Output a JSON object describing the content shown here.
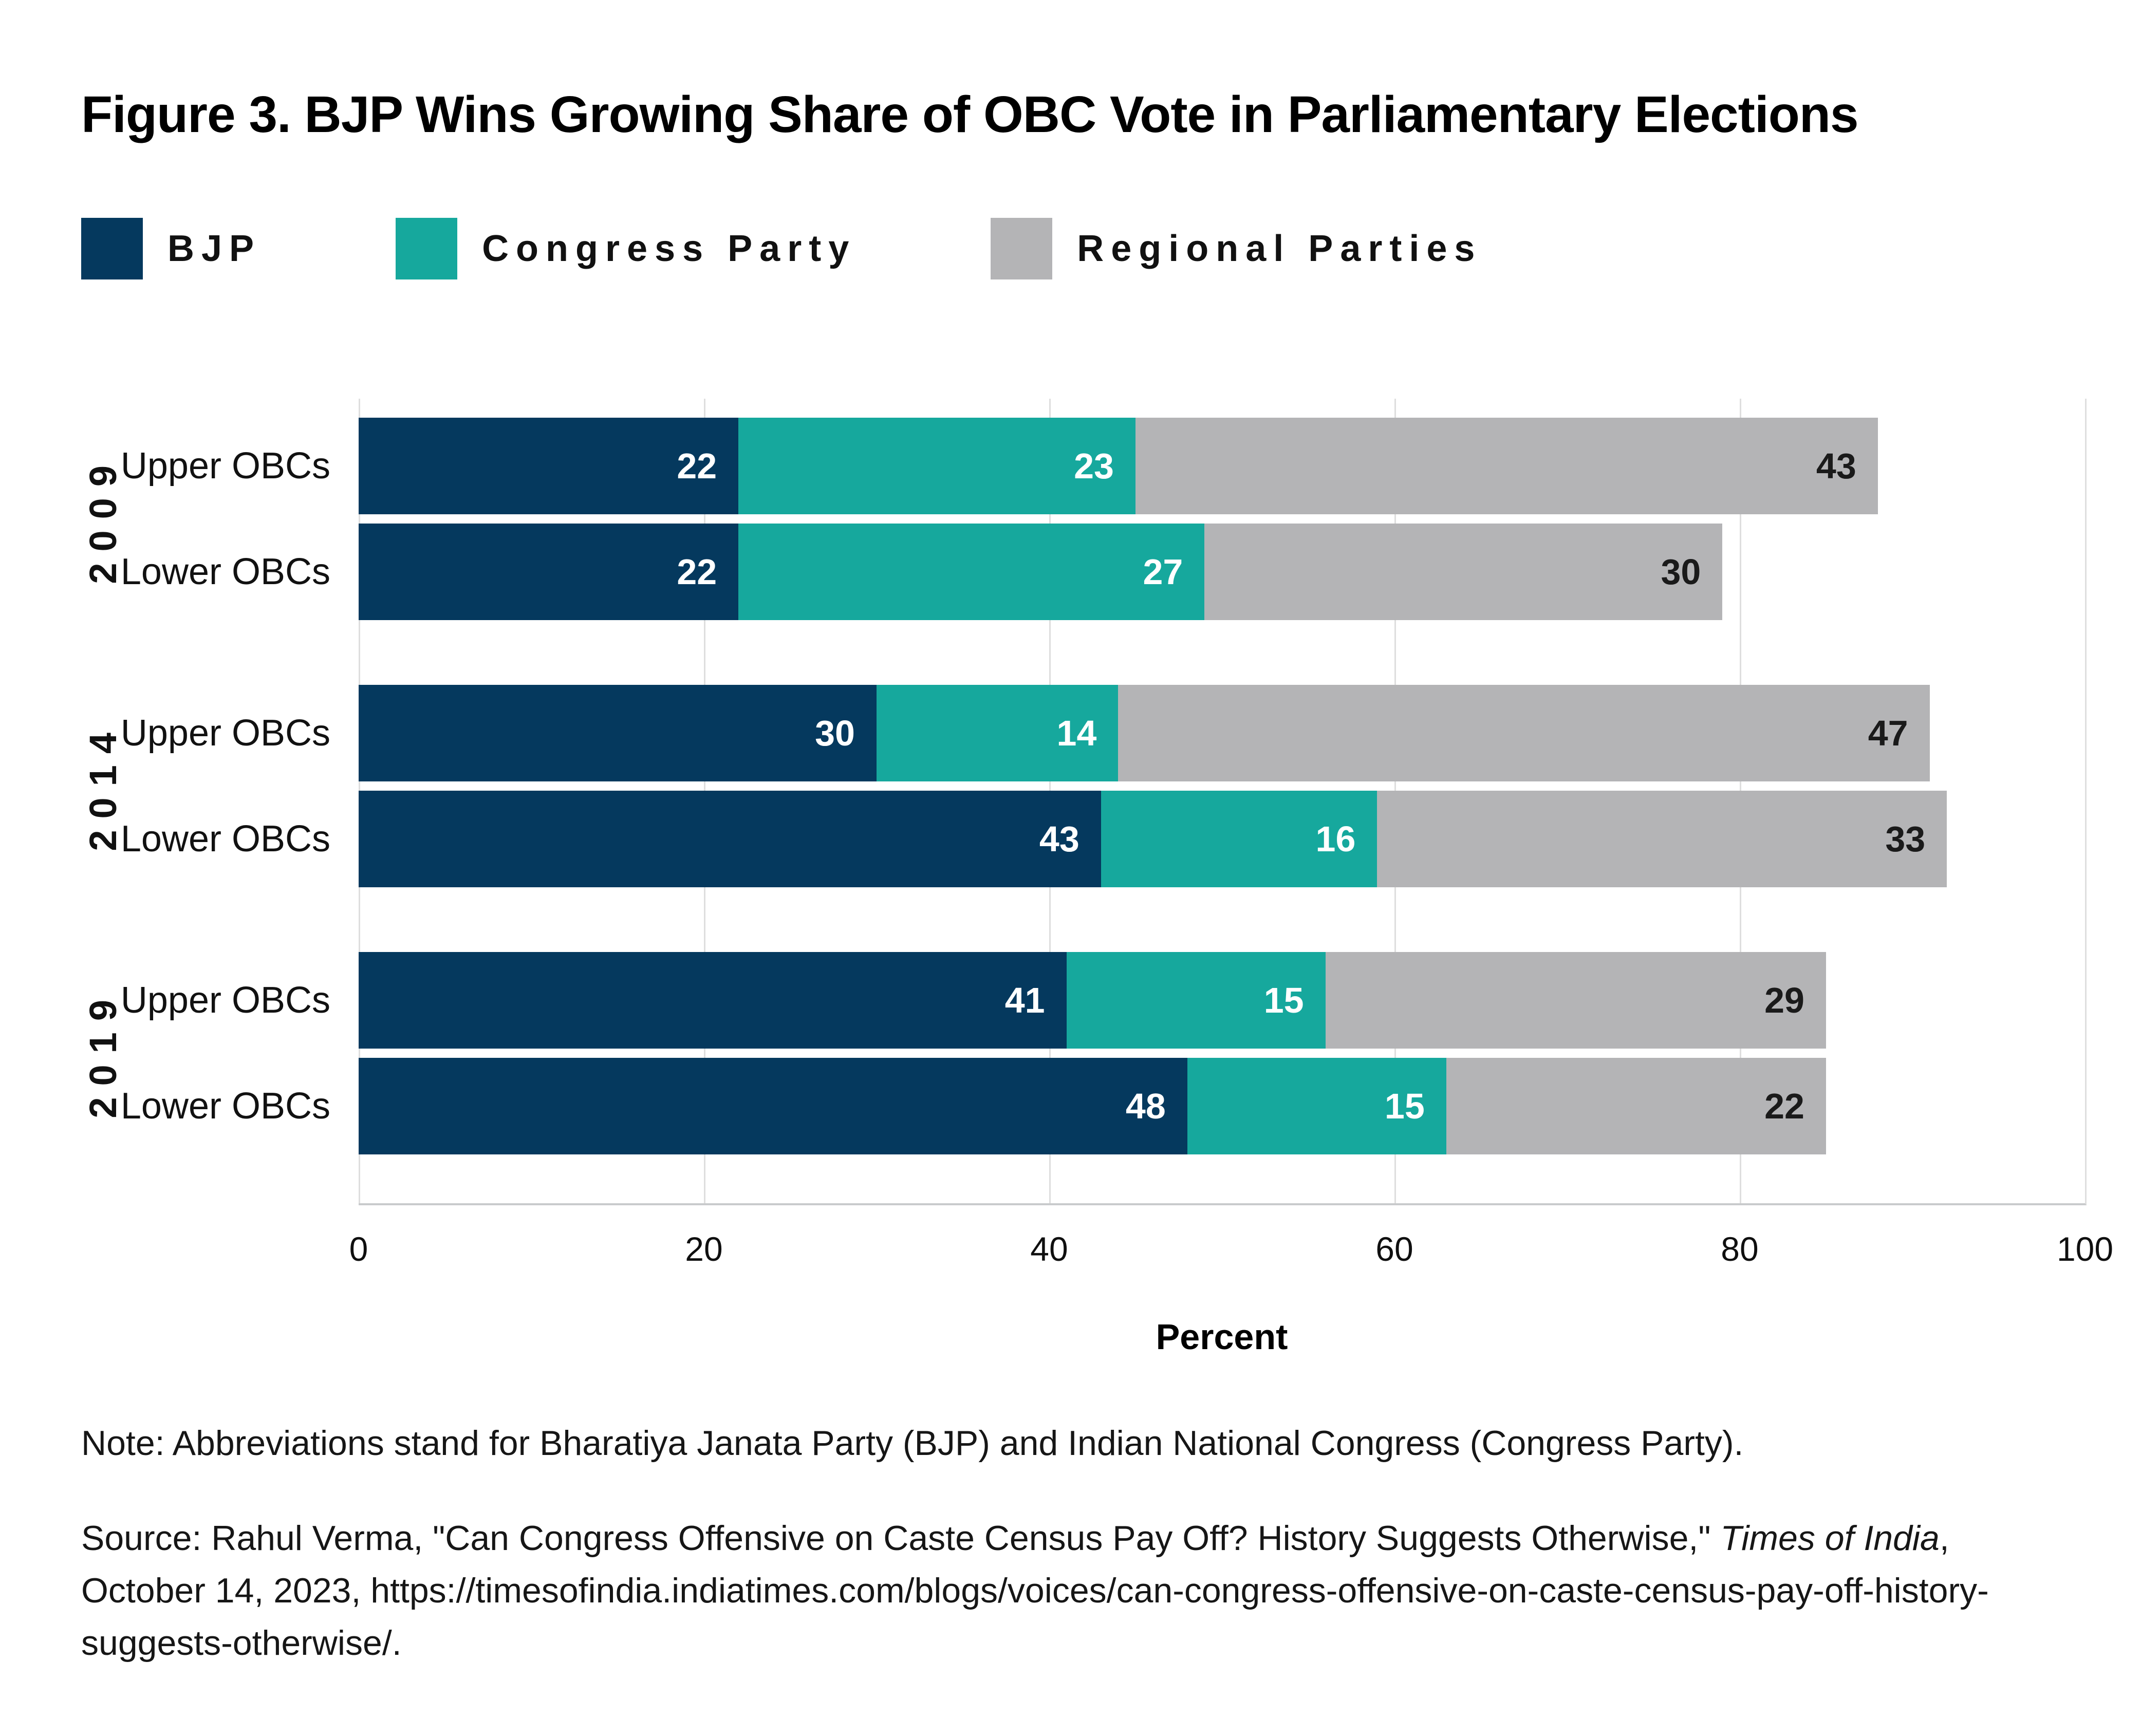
{
  "title": "Figure 3. BJP Wins Growing Share of OBC Vote in Parliamentary Elections",
  "legend": [
    {
      "label": "BJP",
      "color": "#05395E"
    },
    {
      "label": "Congress Party",
      "color": "#16A89D"
    },
    {
      "label": "Regional Parties",
      "color": "#B4B4B6"
    }
  ],
  "chart_data": {
    "type": "bar",
    "orientation": "horizontal",
    "stacked": true,
    "title": "Figure 3. BJP Wins Growing Share of OBC Vote in Parliamentary Elections",
    "series_names": [
      "BJP",
      "Congress Party",
      "Regional Parties"
    ],
    "series_colors": [
      "#05395E",
      "#16A89D",
      "#B4B4B6"
    ],
    "value_label_colors": [
      "#FFFFFF",
      "#FFFFFF",
      "#1A1A1A"
    ],
    "groups": [
      {
        "year": "2009",
        "rows": [
          {
            "label": "Upper OBCs",
            "values": [
              22,
              23,
              43
            ]
          },
          {
            "label": "Lower OBCs",
            "values": [
              22,
              27,
              30
            ]
          }
        ]
      },
      {
        "year": "2014",
        "rows": [
          {
            "label": "Upper OBCs",
            "values": [
              30,
              14,
              47
            ]
          },
          {
            "label": "Lower OBCs",
            "values": [
              43,
              16,
              33
            ]
          }
        ]
      },
      {
        "year": "2019",
        "rows": [
          {
            "label": "Upper OBCs",
            "values": [
              41,
              15,
              29
            ]
          },
          {
            "label": "Lower OBCs",
            "values": [
              48,
              15,
              22
            ]
          }
        ]
      }
    ],
    "xlabel": "Percent",
    "xlim": [
      0,
      100
    ],
    "x_ticks": [
      "0",
      "20",
      "40",
      "60",
      "80",
      "100"
    ],
    "grid": "vertical",
    "legend_position": "top",
    "gridline_color": "#DEDEDE",
    "axis_line_color": "#C9CBCC"
  },
  "note": "Note: Abbreviations stand for Bharatiya Janata Party (BJP) and Indian National Congress (Congress Party).",
  "source": {
    "prefix": "Source: Rahul Verma, \"Can Congress Offensive on Caste Census Pay Off? History Suggests Otherwise,\" ",
    "italic": "Times of India",
    "suffix": ", October 14, 2023, https://timesofindia.indiatimes.com/blogs/voices/can-congress-offensive-on-caste-census-pay-off-history-suggests-otherwise/."
  }
}
